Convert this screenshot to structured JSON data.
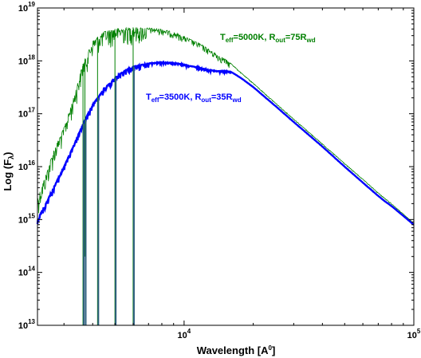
{
  "chart_data": {
    "type": "line",
    "x_scale": "log",
    "y_scale": "log",
    "xlabel_main": "Wavelength [A",
    "xlabel_sup": "0",
    "xlabel_end": "]",
    "ylabel_main": "Log (F",
    "ylabel_sub": "λ",
    "ylabel_end": ")",
    "xlim": [
      2300,
      100000
    ],
    "ylim": [
      10000000000000.0,
      1e+19
    ],
    "x_ticks": [
      {
        "value": 10000,
        "base": "10",
        "exp": "4"
      },
      {
        "value": 100000,
        "base": "10",
        "exp": "5"
      }
    ],
    "y_ticks": [
      {
        "value": 10000000000000.0,
        "base": "10",
        "exp": "13"
      },
      {
        "value": 100000000000000.0,
        "base": "10",
        "exp": "14"
      },
      {
        "value": 1000000000000000.0,
        "base": "10",
        "exp": "15"
      },
      {
        "value": 1e+16,
        "base": "10",
        "exp": "16"
      },
      {
        "value": 1e+17,
        "base": "10",
        "exp": "17"
      },
      {
        "value": 1e+18,
        "base": "10",
        "exp": "18"
      },
      {
        "value": 1e+19,
        "base": "10",
        "exp": "19"
      }
    ],
    "grid": false,
    "series": [
      {
        "color": "#008000",
        "annotation": {
          "T": "T",
          "T_sub": "eff",
          "mid": "=5000K, R",
          "R_sub": "out",
          "end": "=75R",
          "end_sub": "wd"
        },
        "x": [
          2300,
          2500,
          2700,
          3000,
          3300,
          3600,
          4000,
          4500,
          5000,
          5500,
          6000,
          7000,
          8000,
          9000,
          10000,
          11000,
          12000,
          13000,
          14000,
          15000,
          16000,
          17000,
          18000,
          20000,
          25000,
          30000,
          40000,
          50000,
          60000,
          70000,
          75000,
          80000,
          100000
        ],
        "y": [
          2500000000000000.0,
          7000000000000000.0,
          2e+16,
          5.5e+16,
          2e+17,
          8e+17,
          2.4e+18,
          3.6e+18,
          4e+18,
          4.2e+18,
          4.3e+18,
          4.2e+18,
          4e+18,
          3.5e+18,
          2.9e+18,
          2.4e+18,
          2e+18,
          1.6e+18,
          1.3e+18,
          1.1e+18,
          9e+17,
          7e+17,
          5.6e+17,
          3.8e+17,
          1.6e+17,
          8e+16,
          2.7e+16,
          1.15e+16,
          5800000000000000.0,
          3200000000000000.0,
          2500000000000000.0,
          2000000000000000.0,
          850000000000000.0
        ]
      },
      {
        "color": "#0000ff",
        "annotation": {
          "T": "T",
          "T_sub": "eff",
          "mid": "=3500K, R",
          "R_sub": "out",
          "end": "=35R",
          "end_sub": "wd"
        },
        "x": [
          2300,
          2500,
          2700,
          3000,
          3300,
          3600,
          4000,
          4500,
          5000,
          5500,
          6000,
          7000,
          8000,
          9000,
          10000,
          11000,
          12000,
          13000,
          14000,
          15000,
          16000,
          17000,
          18000,
          20000,
          25000,
          30000,
          40000,
          50000,
          60000,
          70000,
          75000,
          80000,
          100000
        ],
        "y": [
          1000000000000000.0,
          2000000000000000.0,
          4000000000000000.0,
          1e+16,
          2.5e+16,
          6e+16,
          1.5e+17,
          3e+17,
          4.8e+17,
          6.5e+17,
          7.8e+17,
          9e+17,
          9.4e+17,
          9.2e+17,
          8.5e+17,
          7.8e+17,
          7.2e+17,
          6.7e+17,
          6.4e+17,
          6.5e+17,
          6.2e+17,
          5.3e+17,
          4.5e+17,
          3.2e+17,
          1.4e+17,
          7e+16,
          2.4e+16,
          1e+16,
          5000000000000000.0,
          2800000000000000.0,
          2200000000000000.0,
          1800000000000000.0,
          800000000000000.0
        ]
      }
    ],
    "absorption_lines": [
      {
        "x": 3630,
        "green_min": 10000000000000.0,
        "blue_min": 10000000000000.0
      },
      {
        "x": 3700,
        "green_min": 200000000000000.0,
        "blue_min": 10000000000000.0
      },
      {
        "x": 4200,
        "green_min": 10000000000000.0,
        "blue_min": 10000000000000.0
      },
      {
        "x": 5000,
        "green_min": 10000000000000.0,
        "blue_min": 10000000000000.0
      },
      {
        "x": 6000,
        "green_min": 10000000000000.0,
        "blue_min": 10000000000000.0
      }
    ]
  }
}
